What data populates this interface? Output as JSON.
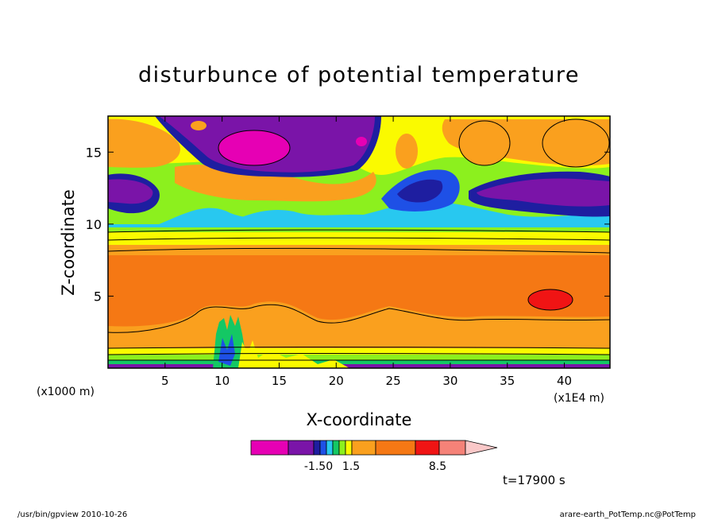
{
  "chart_data": {
    "type": "heatmap",
    "title": "disturbunce of potential temperature",
    "xlabel": "X-coordinate",
    "ylabel": "Z-coordinate",
    "x_unit_left": "(x1000 m)",
    "x_unit_right": "(x1E4 m)",
    "xlim": [
      0,
      44
    ],
    "ylim": [
      0,
      17.5
    ],
    "x_ticks": [
      5,
      10,
      15,
      20,
      25,
      30,
      35,
      40
    ],
    "y_ticks": [
      5,
      10,
      15
    ],
    "colorbar": {
      "labels": [
        "-1.50",
        "1.5",
        "8.5"
      ],
      "colors": [
        "#e600b4",
        "#7a14a8",
        "#1e1ea0",
        "#1e50e6",
        "#28c8f0",
        "#14c864",
        "#8cf01e",
        "#fafa00",
        "#faa01e",
        "#f57814",
        "#f01414",
        "#f58278",
        "#fac8c8"
      ]
    },
    "time_label": "t=17900 s"
  },
  "footer": {
    "left": "/usr/bin/gpview   2010-10-26",
    "right": "arare-earth_PotTemp.nc@PotTemp"
  }
}
